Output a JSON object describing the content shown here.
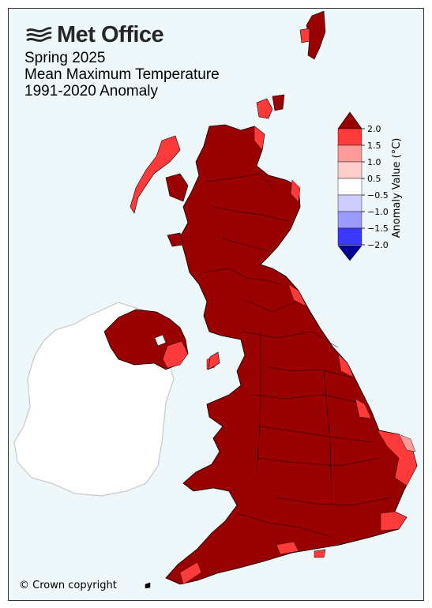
{
  "header": {
    "logo_text": "Met Office",
    "title_lines": [
      "Spring 2025",
      "Mean Maximum Temperature",
      "1991-2020 Anomaly"
    ]
  },
  "footer": {
    "copyright": "© Crown copyright"
  },
  "colorbar": {
    "title": "Anomaly Value (°C)",
    "tick_labels": [
      "2.0",
      "1.5",
      "1.0",
      "0.5",
      "−0.5",
      "−1.0",
      "−1.5",
      "−2.0"
    ],
    "bands": [
      {
        "range": ">2.0",
        "color": "#990000"
      },
      {
        "range": "1.5 to 2.0",
        "color": "#ff3a3a"
      },
      {
        "range": "1.0 to 1.5",
        "color": "#ff9a9a"
      },
      {
        "range": "0.5 to 1.0",
        "color": "#ffcccc"
      },
      {
        "range": "-0.5 to 0.5",
        "color": "#ffffff"
      },
      {
        "range": "-1.0 to -0.5",
        "color": "#ccccff"
      },
      {
        "range": "-1.5 to -1.0",
        "color": "#9a9aff"
      },
      {
        "range": "-2.0 to -1.5",
        "color": "#3a3aff"
      },
      {
        "range": "<-2.0",
        "color": "#000099"
      }
    ]
  },
  "map_colors": {
    "anomaly_above_2": "#990000",
    "anomaly_1_5_to_2": "#ff3a3a",
    "anomaly_1_to_1_5": "#ff9a9a",
    "ireland_fill": "#ffffff",
    "sea": "#eef7fa"
  }
}
